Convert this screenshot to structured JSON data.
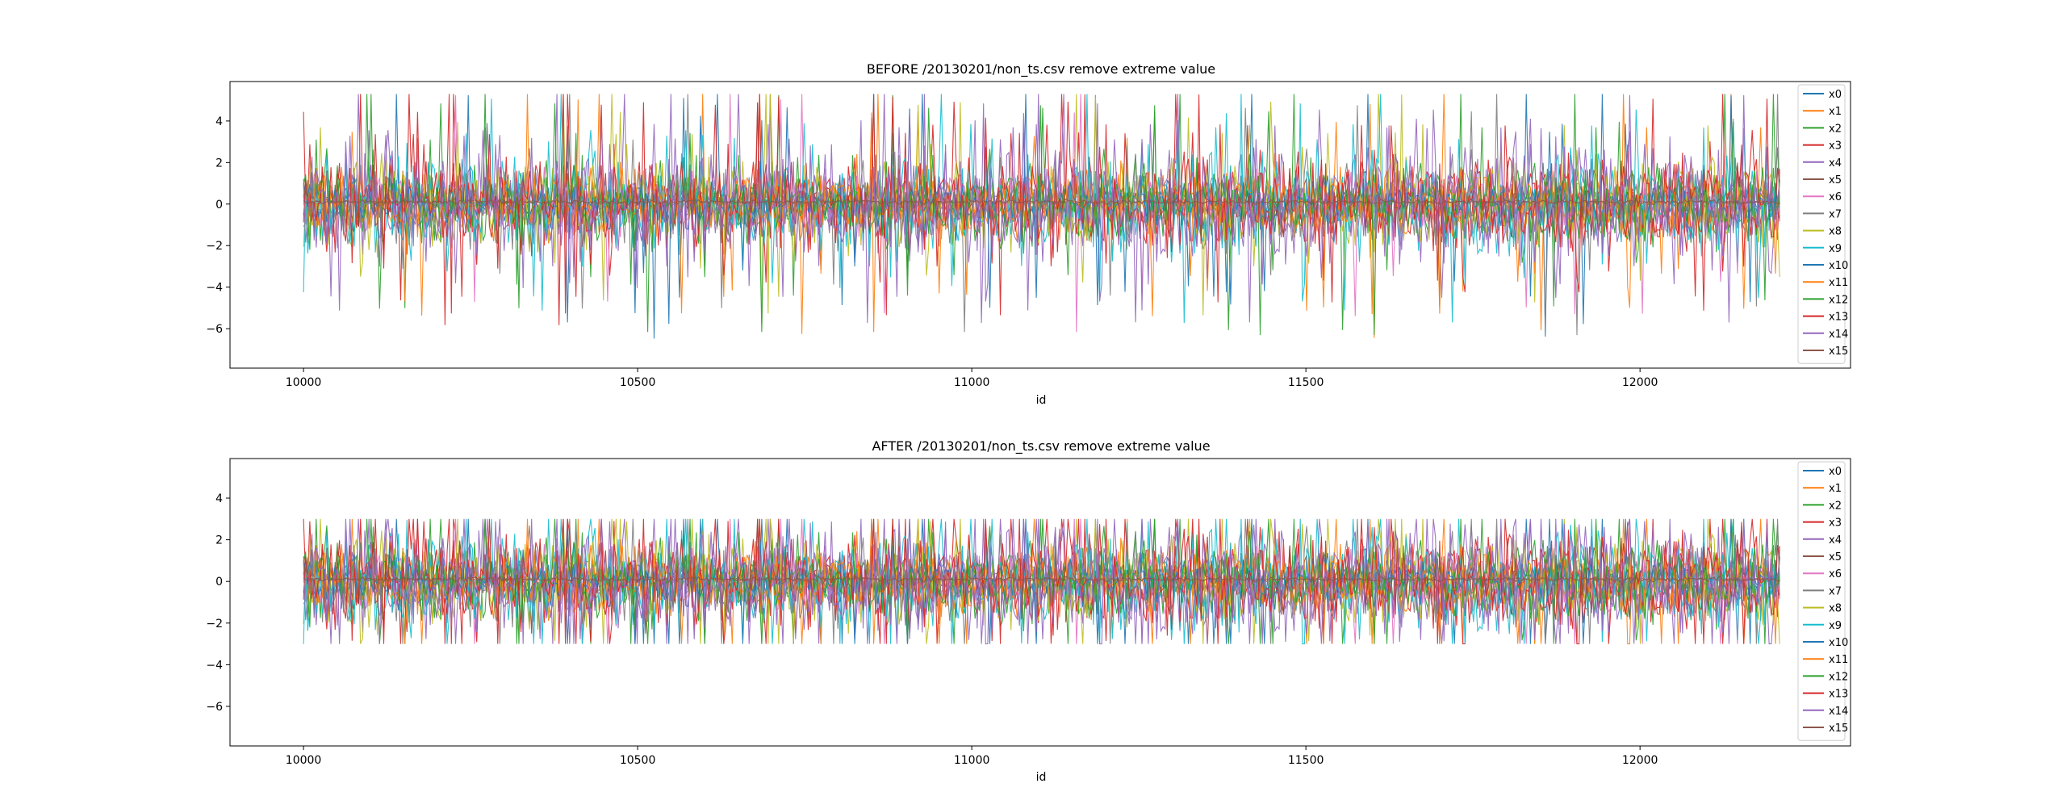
{
  "chart_data": [
    {
      "type": "line",
      "title": "BEFORE /20130201/non_ts.csv remove extreme value",
      "xlabel": "id",
      "ylabel": "",
      "xlim": [
        9890,
        12315
      ],
      "ylim": [
        -7.9,
        5.9
      ],
      "xticks": [
        10000,
        10500,
        11000,
        11500,
        12000
      ],
      "yticks": [
        -6,
        -4,
        -2,
        0,
        2,
        4
      ],
      "legend_position": "upper right",
      "grid": false,
      "x_range": [
        10000,
        12209
      ],
      "series_names": [
        "x0",
        "x1",
        "x2",
        "x3",
        "x4",
        "x5",
        "x6",
        "x7",
        "x8",
        "x9",
        "x10",
        "x11",
        "x12",
        "x13",
        "x14",
        "x15"
      ],
      "approx_range_low": -7.3,
      "approx_range_high": 5.3
    },
    {
      "type": "line",
      "title": "AFTER /20130201/non_ts.csv remove extreme value",
      "xlabel": "id",
      "ylabel": "",
      "xlim": [
        9890,
        12315
      ],
      "ylim": [
        -7.9,
        5.9
      ],
      "xticks": [
        10000,
        10500,
        11000,
        11500,
        12000
      ],
      "yticks": [
        -6,
        -4,
        -2,
        0,
        2,
        4
      ],
      "legend_position": "upper right",
      "grid": false,
      "x_range": [
        10000,
        12209
      ],
      "series_names": [
        "x0",
        "x1",
        "x2",
        "x3",
        "x4",
        "x5",
        "x6",
        "x7",
        "x8",
        "x9",
        "x10",
        "x11",
        "x12",
        "x13",
        "x14",
        "x15"
      ],
      "clip_low": -3,
      "clip_high": 3
    }
  ],
  "colors": {
    "x0": "#1f77b4",
    "x1": "#ff7f0e",
    "x2": "#2ca02c",
    "x3": "#d62728",
    "x4": "#9467bd",
    "x5": "#8c564b",
    "x6": "#e377c2",
    "x7": "#7f7f7f",
    "x8": "#bcbd22",
    "x9": "#17becf",
    "x10": "#1f77b4",
    "x11": "#ff7f0e",
    "x12": "#2ca02c",
    "x13": "#d62728",
    "x14": "#9467bd",
    "x15": "#8c564b"
  }
}
